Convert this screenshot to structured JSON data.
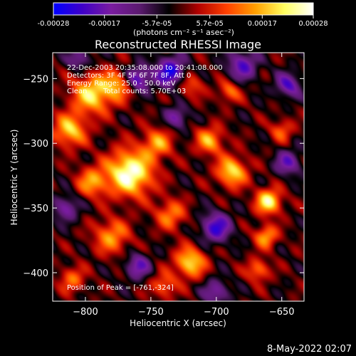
{
  "colors": {
    "background": "#000000",
    "foreground": "#ffffff",
    "colormap": [
      "#0000ff",
      "#3f00c8",
      "#7a1ca0",
      "#5a1a6e",
      "#000000",
      "#b00000",
      "#ff4000",
      "#ffa000",
      "#ffff60",
      "#ffffff"
    ]
  },
  "colorbar": {
    "tick_labels": [
      "-0.00028",
      "-0.00017",
      "-5.7e-05",
      "5.7e-05",
      "0.00017",
      "0.00028"
    ],
    "tick_values": [
      -0.00028,
      -0.00017,
      -5.7e-05,
      5.7e-05,
      0.00017,
      0.00028
    ],
    "range": [
      -0.00028,
      0.00028
    ],
    "units": "(photons cm⁻² s⁻¹ asec⁻²)"
  },
  "annotations": {
    "time": "22-Dec-2003 20:35:08.000 to 20:41:08.000",
    "detectors": "Detectors: 3F 4F 5F 6F 7F 8F, Att 0",
    "energy": "Energy Range: 25.0 - 50.0 keV",
    "method": "Clean",
    "counts": "Total counts: 5.70E+03",
    "peak": "Position of Peak = [-761,-324]"
  },
  "footer": {
    "date": "8-May-2022 02:07"
  },
  "chart_data": {
    "type": "heatmap",
    "title": "Reconstructed RHESSI Image",
    "xlabel": "Heliocentric X (arcsec)",
    "ylabel": "Heliocentric Y (arcsec)",
    "xlim": [
      -825,
      -633
    ],
    "ylim": [
      -422,
      -230
    ],
    "xticks": [
      -800,
      -750,
      -700,
      -650
    ],
    "yticks": [
      -400,
      -350,
      -300,
      -250
    ],
    "x_tick_labels": [
      "−800",
      "−750",
      "−700",
      "−650"
    ],
    "y_tick_labels": [
      "−400",
      "−350",
      "−300",
      "−250"
    ],
    "peak_position": [
      -761,
      -324
    ],
    "grid": false,
    "blobs": [
      {
        "x": -766,
        "y": -323,
        "amp": 1.0,
        "w": 18
      },
      {
        "x": -795,
        "y": -262,
        "amp": 0.75,
        "w": 16
      },
      {
        "x": -812,
        "y": -290,
        "amp": 0.7,
        "w": 13
      },
      {
        "x": -775,
        "y": -255,
        "amp": 0.55,
        "w": 12
      },
      {
        "x": -795,
        "y": -330,
        "amp": 0.55,
        "w": 12
      },
      {
        "x": -780,
        "y": -372,
        "amp": 0.55,
        "w": 14
      },
      {
        "x": -720,
        "y": -392,
        "amp": 0.75,
        "w": 12
      },
      {
        "x": -688,
        "y": -322,
        "amp": 0.75,
        "w": 12
      },
      {
        "x": -705,
        "y": -298,
        "amp": 0.6,
        "w": 11
      },
      {
        "x": -660,
        "y": -345,
        "amp": 0.85,
        "w": 10
      },
      {
        "x": -662,
        "y": -372,
        "amp": 0.6,
        "w": 9
      },
      {
        "x": -668,
        "y": -398,
        "amp": 0.5,
        "w": 9
      },
      {
        "x": -735,
        "y": -355,
        "amp": 0.5,
        "w": 12
      },
      {
        "x": -740,
        "y": -410,
        "amp": 0.45,
        "w": 10
      },
      {
        "x": -720,
        "y": -255,
        "amp": 0.4,
        "w": 10
      },
      {
        "x": -690,
        "y": -260,
        "amp": 0.45,
        "w": 9
      },
      {
        "x": -650,
        "y": -290,
        "amp": 0.4,
        "w": 9
      },
      {
        "x": -810,
        "y": -405,
        "amp": 0.45,
        "w": 10
      },
      {
        "x": -745,
        "y": -300,
        "amp": 0.55,
        "w": 12
      },
      {
        "x": -760,
        "y": -250,
        "amp": -0.7,
        "w": 10
      },
      {
        "x": -735,
        "y": -245,
        "amp": -0.8,
        "w": 12
      },
      {
        "x": -680,
        "y": -240,
        "amp": -0.6,
        "w": 12
      },
      {
        "x": -645,
        "y": -255,
        "amp": -0.6,
        "w": 10
      },
      {
        "x": -700,
        "y": -365,
        "amp": -0.7,
        "w": 12
      },
      {
        "x": -645,
        "y": -315,
        "amp": -0.55,
        "w": 10
      },
      {
        "x": -760,
        "y": -395,
        "amp": -0.55,
        "w": 10
      },
      {
        "x": -815,
        "y": -350,
        "amp": -0.5,
        "w": 10
      },
      {
        "x": -700,
        "y": -415,
        "amp": -0.5,
        "w": 10
      },
      {
        "x": -730,
        "y": -280,
        "amp": -0.5,
        "w": 9
      },
      {
        "x": -805,
        "y": -235,
        "amp": -0.45,
        "w": 9
      }
    ]
  }
}
